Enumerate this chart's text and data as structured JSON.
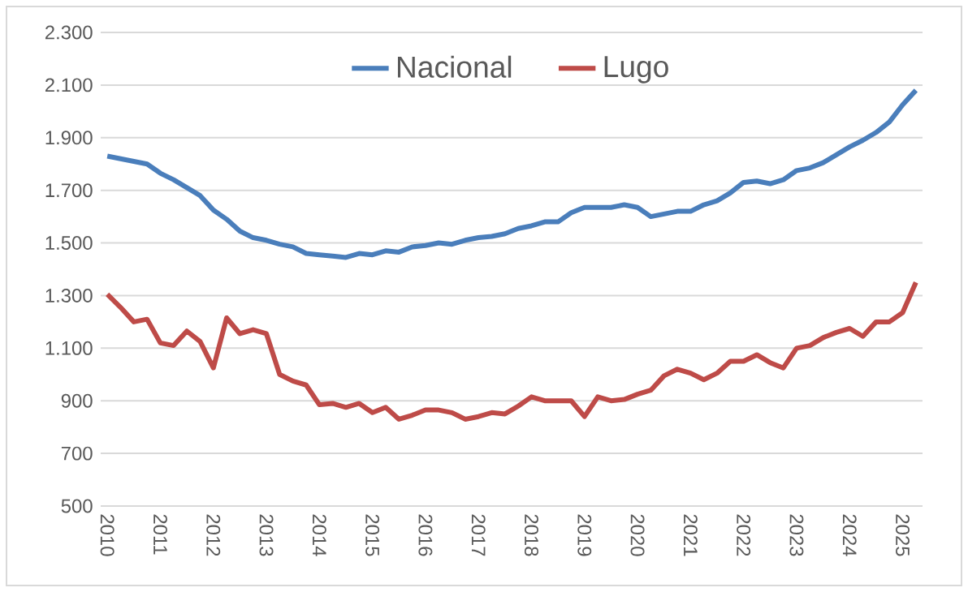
{
  "chart_data": {
    "type": "line",
    "categories": [
      "2010",
      null,
      null,
      null,
      "2011",
      null,
      null,
      null,
      "2012",
      null,
      null,
      null,
      "2013",
      null,
      null,
      null,
      "2014",
      null,
      null,
      null,
      "2015",
      null,
      null,
      null,
      "2016",
      null,
      null,
      null,
      "2017",
      null,
      null,
      null,
      "2018",
      null,
      null,
      null,
      "2019",
      null,
      null,
      null,
      "2020",
      null,
      null,
      null,
      "2021",
      null,
      null,
      null,
      "2022",
      null,
      null,
      null,
      "2023",
      null,
      null,
      null,
      "2024",
      null,
      null,
      null,
      "2025",
      null
    ],
    "series": [
      {
        "name": "Nacional",
        "color": "#4a7ebb",
        "values": [
          1830,
          1820,
          1810,
          1800,
          1765,
          1740,
          1710,
          1680,
          1625,
          1590,
          1545,
          1520,
          1510,
          1495,
          1485,
          1460,
          1455,
          1450,
          1445,
          1460,
          1455,
          1470,
          1465,
          1485,
          1490,
          1500,
          1495,
          1510,
          1520,
          1525,
          1535,
          1555,
          1565,
          1580,
          1580,
          1615,
          1635,
          1635,
          1635,
          1645,
          1635,
          1600,
          1610,
          1620,
          1620,
          1645,
          1660,
          1690,
          1730,
          1735,
          1725,
          1740,
          1775,
          1785,
          1805,
          1835,
          1865,
          1890,
          1920,
          1960,
          2025,
          2080
        ]
      },
      {
        "name": "Lugo",
        "color": "#be4b48",
        "values": [
          1305,
          1255,
          1200,
          1210,
          1120,
          1110,
          1165,
          1125,
          1025,
          1215,
          1155,
          1170,
          1155,
          1000,
          975,
          960,
          885,
          890,
          875,
          890,
          855,
          875,
          830,
          845,
          865,
          865,
          855,
          830,
          840,
          855,
          850,
          880,
          915,
          900,
          900,
          900,
          840,
          915,
          900,
          905,
          925,
          940,
          995,
          1020,
          1005,
          980,
          1005,
          1050,
          1050,
          1075,
          1045,
          1025,
          1100,
          1110,
          1140,
          1160,
          1175,
          1145,
          1200,
          1200,
          1235,
          1350
        ]
      }
    ],
    "ylim": [
      500,
      2300
    ],
    "yticks": [
      500,
      700,
      900,
      {
        "value": 1100,
        "label": "1.100"
      },
      {
        "value": 1300,
        "label": "1.300"
      },
      {
        "value": 1500,
        "label": "1.500"
      },
      {
        "value": 1700,
        "label": "1.700"
      },
      {
        "value": 1900,
        "label": "1.900"
      },
      {
        "value": 2100,
        "label": "2.100"
      },
      {
        "value": 2300,
        "label": "2.300"
      }
    ],
    "grid": "y",
    "legend": "top",
    "marker": "none",
    "line_style": "solid"
  }
}
